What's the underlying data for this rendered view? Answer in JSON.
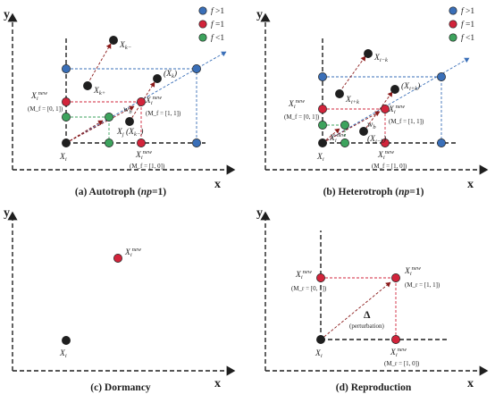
{
  "colors": {
    "blue": "#3a6fb8",
    "red": "#d2243b",
    "green": "#3da35d",
    "black": "#1f1f1f",
    "arrow": "#8b1a1a"
  },
  "axes": {
    "y": "y",
    "x": "x"
  },
  "legend": [
    {
      "f": "f",
      "rest": " >1"
    },
    {
      "f": "f",
      "rest": " =1"
    },
    {
      "f": "f",
      "rest": " <1"
    }
  ],
  "panels": {
    "a": {
      "caption": {
        "pre": "(a) Autotroph (",
        "ital": "np",
        "post": "=1)"
      },
      "labels": {
        "xi": {
          "base": "X",
          "sub": "i"
        },
        "xnew_left": {
          "base": "X",
          "sub": "i",
          "sup": "new"
        },
        "xnew_right": {
          "base": "X",
          "sub": "i",
          "sup": "new"
        },
        "xnew_bottom": {
          "base": "X",
          "sub": "i",
          "sup": "new"
        },
        "xk_minus": {
          "base": "X",
          "sub": "k−"
        },
        "xk_plus": {
          "base": "X",
          "sub": "k+"
        },
        "xk_paren": {
          "base": "(X",
          "sub": "k",
          "post": ")"
        },
        "xj": {
          "base": "X",
          "sub": "j",
          "post": " (X",
          "sub2": "k−",
          "post2": ")"
        },
        "wb": {
          "base": "w",
          "sub": "b"
        }
      },
      "modes": {
        "left": "(M_f = [0, 1])",
        "right": "(M_f = [1, 1])",
        "bottom": "(M_f = [1, 0])"
      }
    },
    "b": {
      "caption": {
        "pre": "(b) Heterotroph (",
        "ital": "np",
        "post": "=1)"
      },
      "labels": {
        "xi": {
          "base": "X",
          "sub": "i"
        },
        "xnew_left": {
          "base": "X",
          "sub": "i",
          "sup": "new"
        },
        "xnew_right": {
          "base": "X",
          "sub": "i",
          "sup": "new"
        },
        "xnew_bottom": {
          "base": "X",
          "sub": "i",
          "sup": "new"
        },
        "xmk": {
          "base": "X",
          "sub": "i−k"
        },
        "xpk": {
          "base": "X",
          "sub": "i+k"
        },
        "xmk_paren": {
          "base": "(X",
          "sub": "i−k",
          "post": ")"
        },
        "xpk_paren": {
          "base": "(X",
          "sub": "i+k",
          "post": ")"
        },
        "wb": {
          "base": "w",
          "sub": "b"
        },
        "xnew_center": {
          "base": "X",
          "sub": "i",
          "sup": "new"
        }
      },
      "modes": {
        "left": "(M_f = [0, 1])",
        "right": "(M_f = [1, 1])",
        "bottom": "(M_f = [1, 0])"
      }
    },
    "c": {
      "caption": "(c) Dormancy",
      "labels": {
        "xnew": {
          "base": "X",
          "sub": "i",
          "sup": "new"
        },
        "xi": {
          "base": "X",
          "sub": "i"
        }
      }
    },
    "d": {
      "caption": "(d) Reproduction",
      "labels": {
        "xi": {
          "base": "X",
          "sub": "i"
        },
        "xnew_left": {
          "base": "X",
          "sub": "i",
          "sup": "new"
        },
        "xnew_right": {
          "base": "X",
          "sub": "i",
          "sup": "new"
        },
        "xnew_bottom": {
          "base": "X",
          "sub": "i",
          "sup": "new"
        }
      },
      "modes": {
        "left": "(M_r = [0, 1])",
        "right": "(M_r = [1, 1])",
        "bottom": "(M_r = [1, 0])"
      },
      "delta": "Δ",
      "perturbation": "(perturbation)"
    }
  }
}
